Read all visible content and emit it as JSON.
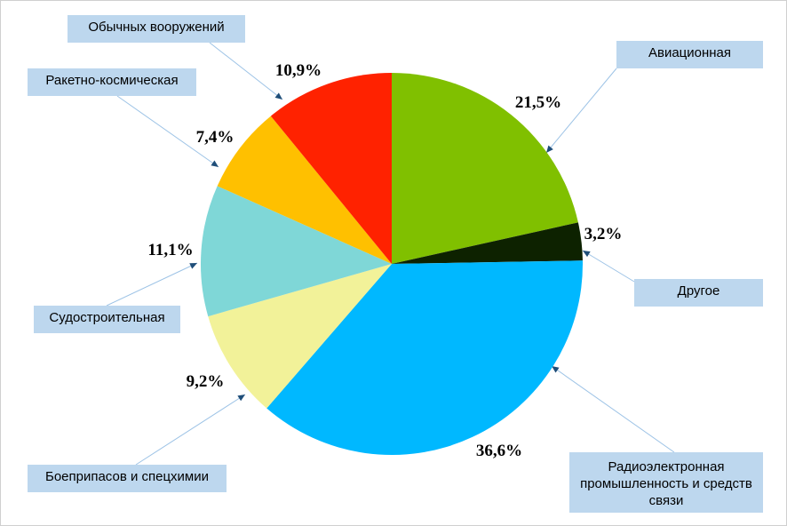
{
  "chart_data": {
    "type": "pie",
    "title": "",
    "slices": [
      {
        "label": "Авиационная",
        "value": 21.5,
        "value_label": "21,5%",
        "color": "#80c000"
      },
      {
        "label": "Другое",
        "value": 3.2,
        "value_label": "3,2%",
        "color": "#0d2200"
      },
      {
        "label": "Радиоэлектронная промышленность и средств связи",
        "value": 36.6,
        "value_label": "36,6%",
        "color": "#00b8ff"
      },
      {
        "label": "Боеприпасов и спецхимии",
        "value": 9.2,
        "value_label": "9,2%",
        "color": "#f2f299"
      },
      {
        "label": "Судостроительная",
        "value": 11.1,
        "value_label": "11,1%",
        "color": "#7fd7d7"
      },
      {
        "label": "Ракетно-космическая",
        "value": 7.4,
        "value_label": "7,4%",
        "color": "#ffc000"
      },
      {
        "label": "Обычных вооружений",
        "value": 10.9,
        "value_label": "10,9%",
        "color": "#ff2200"
      }
    ],
    "leader_line_color": "#9dc3e6",
    "arrow_color": "#1f4e79",
    "callout_color": "#bdd7ee",
    "legend": "none"
  }
}
